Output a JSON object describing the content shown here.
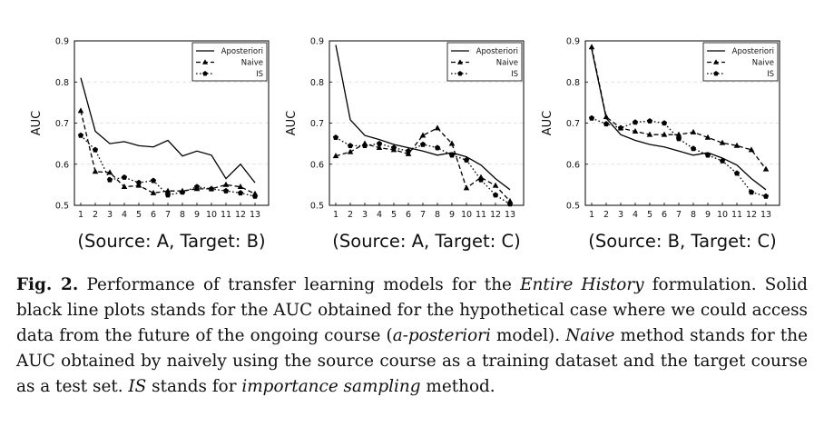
{
  "chart_data": [
    {
      "type": "line",
      "title": "(Source: A, Target: B)",
      "ylabel": "AUC",
      "xlabel": "",
      "x": [
        1,
        2,
        3,
        4,
        5,
        6,
        7,
        8,
        9,
        10,
        11,
        12,
        13
      ],
      "ylim": [
        0.5,
        0.9
      ],
      "yticks": [
        "0.5",
        "0.6",
        "0.7",
        "0.8",
        "0.9"
      ],
      "grid": "dashed horizontal",
      "legend": "top-right",
      "series": [
        {
          "name": "Aposteriori",
          "style": "solid",
          "values": [
            0.81,
            0.68,
            0.65,
            0.655,
            0.645,
            0.642,
            0.658,
            0.62,
            0.632,
            0.622,
            0.565,
            0.6,
            0.555
          ]
        },
        {
          "name": "Naive",
          "style": "dashed",
          "values": [
            0.73,
            0.582,
            0.58,
            0.545,
            0.548,
            0.53,
            0.535,
            0.535,
            0.54,
            0.54,
            0.55,
            0.545,
            0.528
          ]
        },
        {
          "name": "IS",
          "style": "dotted",
          "values": [
            0.67,
            0.635,
            0.562,
            0.568,
            0.555,
            0.56,
            0.525,
            0.532,
            0.545,
            0.54,
            0.535,
            0.53,
            0.522
          ]
        }
      ]
    },
    {
      "type": "line",
      "title": "(Source: A, Target: C)",
      "ylabel": "AUC",
      "xlabel": "",
      "x": [
        1,
        2,
        3,
        4,
        5,
        6,
        7,
        8,
        9,
        10,
        11,
        12,
        13
      ],
      "ylim": [
        0.5,
        0.9
      ],
      "yticks": [
        "0.5",
        "0.6",
        "0.7",
        "0.8",
        "0.9"
      ],
      "grid": "dashed horizontal",
      "legend": "top-right",
      "series": [
        {
          "name": "Aposteriori",
          "style": "solid",
          "values": [
            0.89,
            0.708,
            0.67,
            0.66,
            0.648,
            0.64,
            0.632,
            0.622,
            0.628,
            0.618,
            0.598,
            0.565,
            0.538
          ]
        },
        {
          "name": "Naive",
          "style": "dashed",
          "values": [
            0.62,
            0.63,
            0.65,
            0.64,
            0.635,
            0.625,
            0.67,
            0.688,
            0.65,
            0.542,
            0.568,
            0.548,
            0.51
          ]
        },
        {
          "name": "IS",
          "style": "dotted",
          "values": [
            0.665,
            0.645,
            0.645,
            0.65,
            0.64,
            0.632,
            0.648,
            0.64,
            0.622,
            0.61,
            0.562,
            0.525,
            0.503
          ]
        }
      ]
    },
    {
      "type": "line",
      "title": "(Source: B, Target: C)",
      "ylabel": "AUC",
      "xlabel": "",
      "x": [
        1,
        2,
        3,
        4,
        5,
        6,
        7,
        8,
        9,
        10,
        11,
        12,
        13
      ],
      "ylim": [
        0.5,
        0.9
      ],
      "yticks": [
        "0.5",
        "0.6",
        "0.7",
        "0.8",
        "0.9"
      ],
      "grid": "dashed horizontal",
      "legend": "top-right",
      "series": [
        {
          "name": "Aposteriori",
          "style": "solid",
          "values": [
            0.88,
            0.712,
            0.672,
            0.658,
            0.648,
            0.642,
            0.632,
            0.622,
            0.628,
            0.615,
            0.598,
            0.565,
            0.538
          ]
        },
        {
          "name": "Naive",
          "style": "dashed",
          "values": [
            0.885,
            0.715,
            0.688,
            0.68,
            0.672,
            0.672,
            0.672,
            0.678,
            0.665,
            0.652,
            0.645,
            0.635,
            0.588
          ]
        },
        {
          "name": "IS",
          "style": "dotted",
          "values": [
            0.712,
            0.698,
            0.688,
            0.702,
            0.705,
            0.7,
            0.662,
            0.638,
            0.622,
            0.608,
            0.578,
            0.532,
            0.522
          ]
        }
      ]
    }
  ],
  "caption": {
    "label": "Fig. 2.",
    "segments": [
      {
        "text": " Performance of transfer learning models for the ",
        "italic": false
      },
      {
        "text": "Entire History",
        "italic": true
      },
      {
        "text": " formulation. Solid black line plots stands for the AUC obtained for the hypothetical case where we could access data from the future of the ongoing course (",
        "italic": false
      },
      {
        "text": "a-posteriori",
        "italic": true
      },
      {
        "text": " model). ",
        "italic": false
      },
      {
        "text": "Naive",
        "italic": true
      },
      {
        "text": " method stands for the AUC obtained by naively using the source course as a training dataset and the target course as a test set. ",
        "italic": false
      },
      {
        "text": "IS",
        "italic": true
      },
      {
        "text": " stands for ",
        "italic": false
      },
      {
        "text": "importance sampling",
        "italic": true
      },
      {
        "text": " method.",
        "italic": false
      }
    ]
  }
}
